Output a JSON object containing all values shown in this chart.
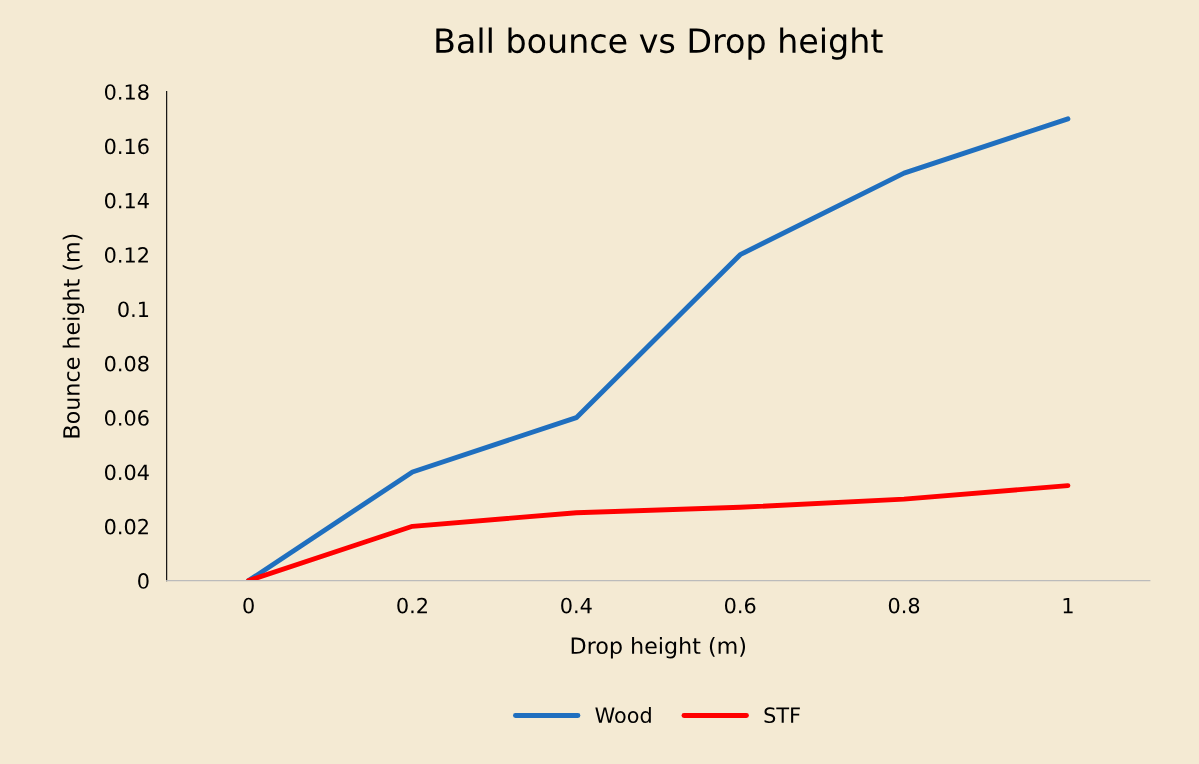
{
  "chart_data": {
    "type": "line",
    "title": "Ball bounce vs Drop height",
    "xlabel": "Drop height (m)",
    "ylabel": "Bounce height (m)",
    "categories": [
      "0",
      "0.2",
      "0.4",
      "0.6",
      "0.8",
      "1"
    ],
    "series": [
      {
        "name": "Wood",
        "color": "#1f6fbf",
        "values": [
          0,
          0.04,
          0.06,
          0.12,
          0.15,
          0.17
        ]
      },
      {
        "name": "STF",
        "color": "#ff0000",
        "values": [
          0,
          0.02,
          0.025,
          0.027,
          0.03,
          0.035
        ]
      }
    ],
    "ylim": [
      0,
      0.18
    ],
    "yticks": [
      0,
      0.02,
      0.04,
      0.06,
      0.08,
      {
        "value": 0.1,
        "label": "0.1"
      },
      0.12,
      0.14,
      0.16,
      0.18
    ],
    "grid": false,
    "legend": "bottom",
    "marker": "none",
    "line_style": "solid"
  }
}
